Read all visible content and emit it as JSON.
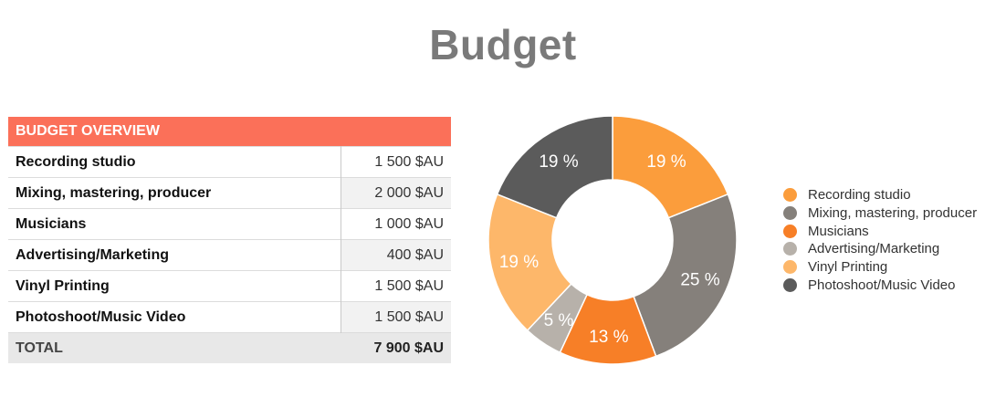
{
  "title": "Budget",
  "table": {
    "header": "BUDGET OVERVIEW",
    "rows": [
      {
        "label": "Recording studio",
        "value": "1 500 $AU"
      },
      {
        "label": "Mixing, mastering, producer",
        "value": "2 000 $AU"
      },
      {
        "label": "Musicians",
        "value": "1 000 $AU"
      },
      {
        "label": "Advertising/Marketing",
        "value": "400 $AU"
      },
      {
        "label": "Vinyl Printing",
        "value": "1 500 $AU"
      },
      {
        "label": "Photoshoot/Music Video",
        "value": "1 500 $AU"
      }
    ],
    "total": {
      "label": "TOTAL",
      "value": "7 900 $AU"
    }
  },
  "chart_data": {
    "type": "pie",
    "donut": true,
    "categories": [
      "Recording studio",
      "Mixing, mastering, producer",
      "Musicians",
      "Advertising/Marketing",
      "Vinyl Printing",
      "Photoshoot/Music Video"
    ],
    "values": [
      1500,
      2000,
      1000,
      400,
      1500,
      1500
    ],
    "data_labels": [
      "19 %",
      "25 %",
      "13 %",
      "5 %",
      "19 %",
      "19 %"
    ],
    "colors": [
      "#fb9d3c",
      "#85807b",
      "#f77f27",
      "#b7b1aa",
      "#fdb76a",
      "#5b5b5b"
    ],
    "legend_position": "right"
  }
}
